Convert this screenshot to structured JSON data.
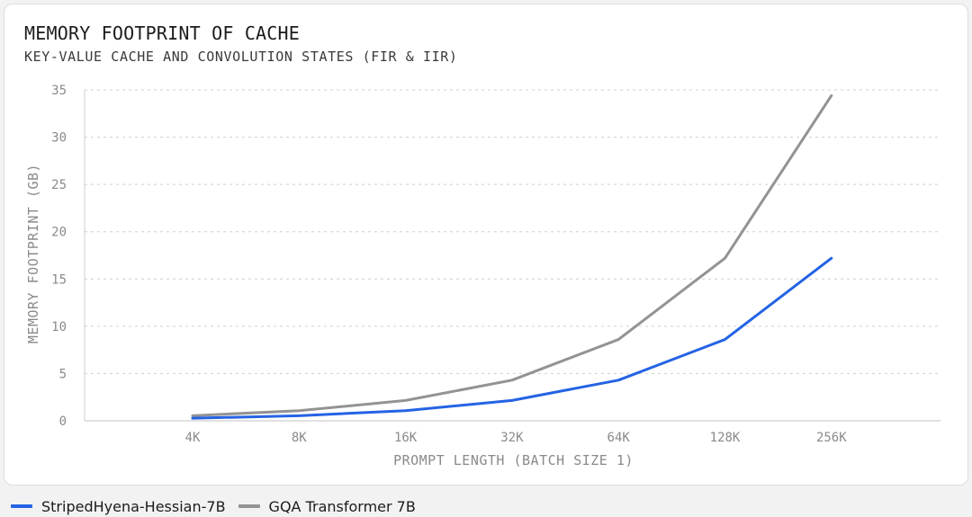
{
  "chart_data": {
    "type": "line",
    "title": "MEMORY FOOTPRINT OF CACHE",
    "subtitle": "KEY-VALUE CACHE AND CONVOLUTION STATES (FIR & IIR)",
    "xlabel": "PROMPT LENGTH (BATCH SIZE 1)",
    "ylabel": "MEMORY FOOTPRINT (GB)",
    "categories": [
      "4K",
      "8K",
      "16K",
      "32K",
      "64K",
      "128K",
      "256K"
    ],
    "ylim": [
      0,
      35
    ],
    "yticks": [
      0,
      5,
      10,
      15,
      20,
      25,
      30,
      35
    ],
    "grid": true,
    "legend_position": "bottom-left",
    "series": [
      {
        "name": "StripedHyena-Hessian-7B",
        "color": "#2463e4",
        "values": [
          0.27,
          0.54,
          1.07,
          2.15,
          4.3,
          8.6,
          17.2
        ]
      },
      {
        "name": "GQA Transformer 7B",
        "color": "#939393",
        "values": [
          0.54,
          1.07,
          2.15,
          4.3,
          8.6,
          17.2,
          34.4
        ]
      }
    ]
  }
}
